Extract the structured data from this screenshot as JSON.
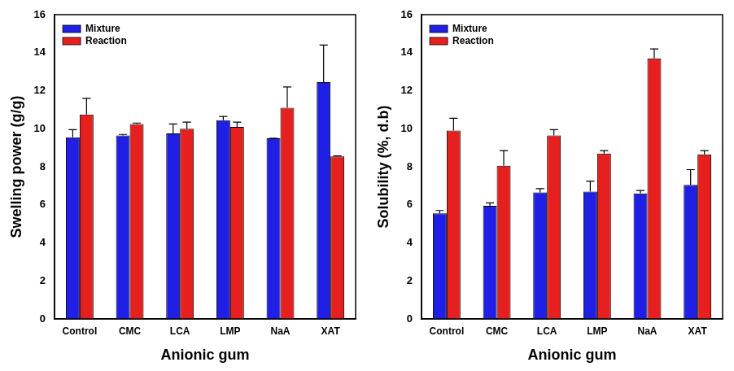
{
  "chart_data": [
    {
      "type": "bar",
      "categories": [
        "Control",
        "CMC",
        "LCA",
        "LMP",
        "NaA",
        "XAT"
      ],
      "series": [
        {
          "name": "Mixture",
          "color": "#1f1fe6",
          "values": [
            9.55,
            9.65,
            9.75,
            10.45,
            9.5,
            12.45
          ],
          "errors": [
            0.4,
            0.05,
            0.5,
            0.2,
            0.0,
            1.95
          ]
        },
        {
          "name": "Reaction",
          "color": "#e61f1f",
          "values": [
            10.75,
            10.25,
            10.0,
            10.1,
            11.1,
            8.55
          ],
          "errors": [
            0.85,
            0.05,
            0.35,
            0.25,
            1.1,
            0.02
          ]
        }
      ],
      "x_label": "Anionic gum",
      "y_label": "Swelling power (g/g)",
      "ylim": [
        0,
        16
      ],
      "yticks": [
        0,
        2,
        4,
        6,
        8,
        10,
        12,
        14,
        16
      ],
      "grid": false,
      "legend": "upper left"
    },
    {
      "type": "bar",
      "categories": [
        "Control",
        "CMC",
        "LCA",
        "LMP",
        "NaA",
        "XAT"
      ],
      "series": [
        {
          "name": "Mixture",
          "color": "#1f1fe6",
          "values": [
            5.55,
            5.95,
            6.65,
            6.7,
            6.6,
            7.05
          ],
          "errors": [
            0.15,
            0.15,
            0.2,
            0.55,
            0.15,
            0.8
          ]
        },
        {
          "name": "Reaction",
          "color": "#e61f1f",
          "values": [
            9.9,
            8.05,
            9.65,
            8.7,
            13.7,
            8.65
          ],
          "errors": [
            0.65,
            0.8,
            0.3,
            0.15,
            0.5,
            0.2
          ]
        }
      ],
      "x_label": "Anionic gum",
      "y_label": "Solubility (%, d.b)",
      "ylim": [
        0,
        16
      ],
      "yticks": [
        0,
        2,
        4,
        6,
        8,
        10,
        12,
        14,
        16
      ],
      "grid": false,
      "legend": "upper left"
    }
  ]
}
